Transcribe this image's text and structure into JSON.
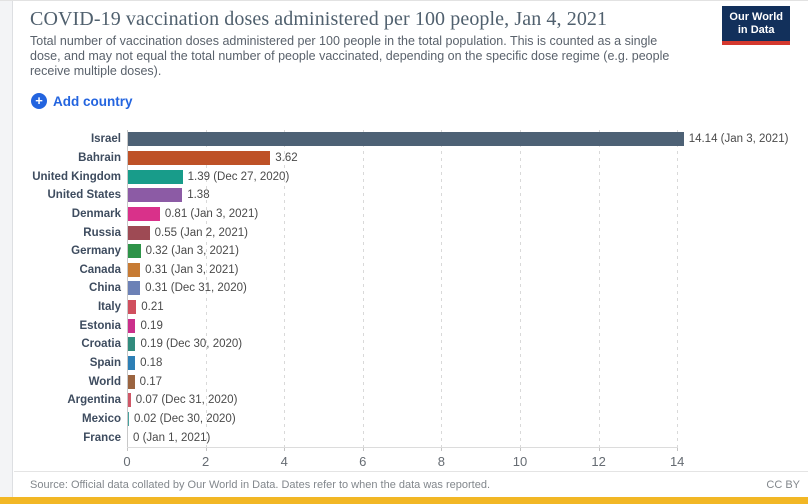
{
  "page": {
    "background": "#ffffff",
    "bottom_bar_color": "#F2B725"
  },
  "header": {
    "title": "COVID-19 vaccination doses administered per 100 people, Jan 4, 2021",
    "subtitle": "Total number of vaccination doses administered per 100 people in the total population. This is counted as a single dose, and may not equal the total number of people vaccinated, depending on the specific dose regime (e.g. people receive multiple doses)."
  },
  "logo": {
    "line1": "Our World",
    "line2": "in Data",
    "bg_color": "#12305B",
    "accent_color": "#D4382E"
  },
  "controls": {
    "add_country_label": "Add country",
    "plus_glyph": "+",
    "accent_color": "#2364DF"
  },
  "chart_data": {
    "type": "bar",
    "orientation": "horizontal",
    "title": "COVID-19 vaccination doses administered per 100 people, Jan 4, 2021",
    "xlim": [
      0,
      14
    ],
    "x_ticks": [
      0,
      2,
      4,
      6,
      8,
      10,
      12,
      14
    ],
    "grid": "vertical-dashed",
    "rows": [
      {
        "label": "Israel",
        "value": 14.14,
        "value_label": "14.14 (Jan 3, 2021)",
        "color": "#4D6175"
      },
      {
        "label": "Bahrain",
        "value": 3.62,
        "value_label": "3.62",
        "color": "#BE5127"
      },
      {
        "label": "United Kingdom",
        "value": 1.39,
        "value_label": "1.39 (Dec 27, 2020)",
        "color": "#189C8A"
      },
      {
        "label": "United States",
        "value": 1.38,
        "value_label": "1.38",
        "color": "#8C5BA5"
      },
      {
        "label": "Denmark",
        "value": 0.81,
        "value_label": "0.81 (Jan 3, 2021)",
        "color": "#D9318A"
      },
      {
        "label": "Russia",
        "value": 0.55,
        "value_label": "0.55 (Jan 2, 2021)",
        "color": "#9E4A54"
      },
      {
        "label": "Germany",
        "value": 0.32,
        "value_label": "0.32 (Jan 3, 2021)",
        "color": "#2D9348"
      },
      {
        "label": "Canada",
        "value": 0.31,
        "value_label": "0.31 (Jan 3, 2021)",
        "color": "#C77B33"
      },
      {
        "label": "China",
        "value": 0.31,
        "value_label": "0.31 (Dec 31, 2020)",
        "color": "#6C81B6"
      },
      {
        "label": "Italy",
        "value": 0.21,
        "value_label": "0.21",
        "color": "#D04F5E"
      },
      {
        "label": "Estonia",
        "value": 0.19,
        "value_label": "0.19",
        "color": "#CB2F8B"
      },
      {
        "label": "Croatia",
        "value": 0.19,
        "value_label": "0.19 (Dec 30, 2020)",
        "color": "#318B7D"
      },
      {
        "label": "Spain",
        "value": 0.18,
        "value_label": "0.18",
        "color": "#2D7FB5"
      },
      {
        "label": "World",
        "value": 0.17,
        "value_label": "0.17",
        "color": "#9B6440"
      },
      {
        "label": "Argentina",
        "value": 0.07,
        "value_label": "0.07 (Dec 31, 2020)",
        "color": "#CF5767"
      },
      {
        "label": "Mexico",
        "value": 0.02,
        "value_label": "0.02 (Dec 30, 2020)",
        "color": "#47A29E"
      },
      {
        "label": "France",
        "value": 0,
        "value_label": "0 (Jan 1, 2021)",
        "color": ""
      }
    ]
  },
  "footer": {
    "source": "Source: Official data collated by Our World in Data. Dates refer to when the data was reported.",
    "license": "CC BY"
  }
}
